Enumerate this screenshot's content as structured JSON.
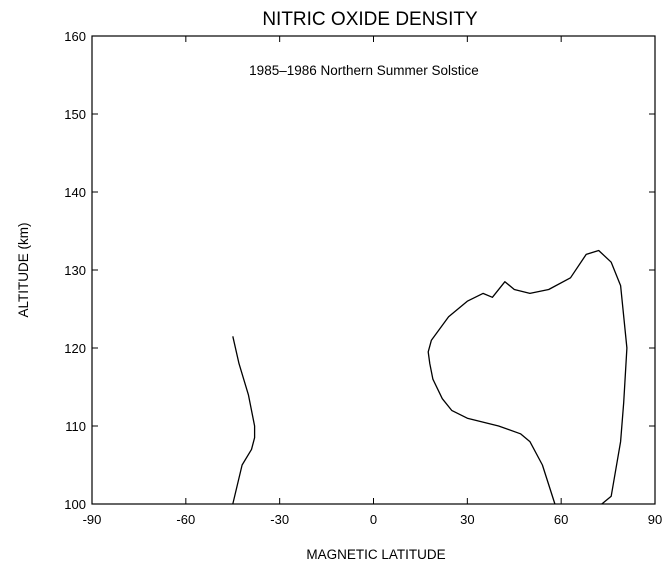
{
  "chart_data": {
    "type": "line",
    "title": "NITRIC OXIDE DENSITY",
    "annotation": "1985–1986 Northern Summer Solstice",
    "xlabel": "MAGNETIC LATITUDE",
    "ylabel": "ALTITUDE (km)",
    "xlim": [
      -90,
      90
    ],
    "ylim": [
      100,
      160
    ],
    "x_ticks": [
      -90,
      -60,
      -30,
      0,
      30,
      60,
      90
    ],
    "y_ticks": [
      100,
      110,
      120,
      130,
      140,
      150,
      160
    ],
    "grid": false,
    "series": [
      {
        "color": "#000000",
        "points": [
          [
            -45,
            121.5
          ],
          [
            -43,
            118
          ],
          [
            -40,
            114
          ],
          [
            -38,
            110
          ],
          [
            -38,
            108.5
          ],
          [
            -39,
            107
          ],
          [
            -42,
            105
          ],
          [
            -45,
            100
          ]
        ]
      },
      {
        "color": "#000000",
        "points": [
          [
            58,
            100
          ],
          [
            54,
            105
          ],
          [
            50,
            108
          ],
          [
            47,
            109
          ],
          [
            40,
            110
          ],
          [
            30,
            111
          ],
          [
            25,
            112
          ],
          [
            22,
            113.5
          ],
          [
            19,
            116
          ],
          [
            18,
            118
          ],
          [
            17.5,
            119.5
          ],
          [
            18.5,
            121
          ],
          [
            24,
            124
          ],
          [
            30,
            126
          ],
          [
            35,
            127
          ],
          [
            38,
            126.5
          ],
          [
            42,
            128.5
          ],
          [
            45,
            127.5
          ],
          [
            50,
            127
          ],
          [
            56,
            127.5
          ],
          [
            63,
            129
          ],
          [
            68,
            132
          ],
          [
            72,
            132.5
          ],
          [
            76,
            131
          ],
          [
            79,
            128
          ],
          [
            81,
            120
          ],
          [
            80,
            113
          ],
          [
            79,
            108
          ],
          [
            76,
            101
          ],
          [
            73,
            100
          ]
        ]
      }
    ]
  }
}
